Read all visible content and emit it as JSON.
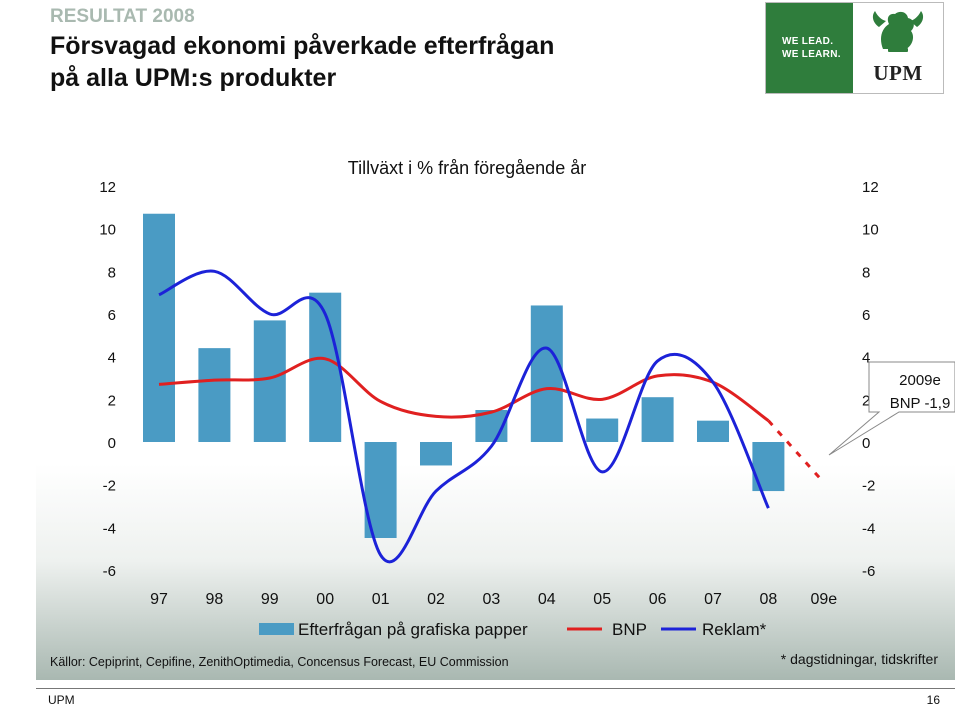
{
  "header": {
    "kicker": "RESULTAT 2008",
    "title_line1": "Försvagad ekonomi påverkade efterfrågan",
    "title_line2": "på alla UPM:s produkter"
  },
  "logo": {
    "tagline_line1": "WE LEAD.",
    "tagline_line2": "WE LEARN.",
    "brand": "UPM"
  },
  "colors": {
    "bar": "#4a9bc4",
    "bnp": "#e02020",
    "reklam": "#1c22d8",
    "logo_green": "#2f7d3c"
  },
  "chart_data": {
    "type": "bar",
    "title": "Tillväxt i % från föregående år",
    "categories": [
      "97",
      "98",
      "99",
      "00",
      "01",
      "02",
      "03",
      "04",
      "05",
      "06",
      "07",
      "08",
      "09e"
    ],
    "ylim": [
      -6,
      12
    ],
    "yticks": [
      "12",
      "10",
      "8",
      "6",
      "4",
      "2",
      "0",
      "-2",
      "-4",
      "-6"
    ],
    "series": [
      {
        "name": "Efterfrågan på grafiska papper",
        "kind": "bar",
        "values": [
          10.7,
          4.4,
          5.7,
          7.0,
          -4.5,
          -1.1,
          1.5,
          6.4,
          1.1,
          2.1,
          1.0,
          -2.3,
          null
        ]
      },
      {
        "name": "BNP",
        "kind": "line",
        "values": [
          2.7,
          2.9,
          3.0,
          3.9,
          1.9,
          1.2,
          1.4,
          2.5,
          2.0,
          3.1,
          2.8,
          1.0,
          -1.9
        ],
        "dashed_from": "08"
      },
      {
        "name": "Reklam*",
        "kind": "line",
        "values": [
          6.9,
          8.0,
          6.0,
          6.0,
          -5.3,
          -2.3,
          -0.2,
          4.4,
          -1.4,
          3.8,
          2.8,
          -3.1,
          null
        ]
      }
    ],
    "callout_line1": "2009e",
    "callout_line2": "BNP -1,9",
    "legend": "bottom",
    "grid": false
  },
  "notes": {
    "sources": "Källor: Cepiprint, Cepifine, ZenithOptimedia, Concensus Forecast, EU Commission",
    "footnote": "* dagstidningar, tidskrifter"
  },
  "footer": {
    "left": "UPM",
    "page": "16"
  }
}
